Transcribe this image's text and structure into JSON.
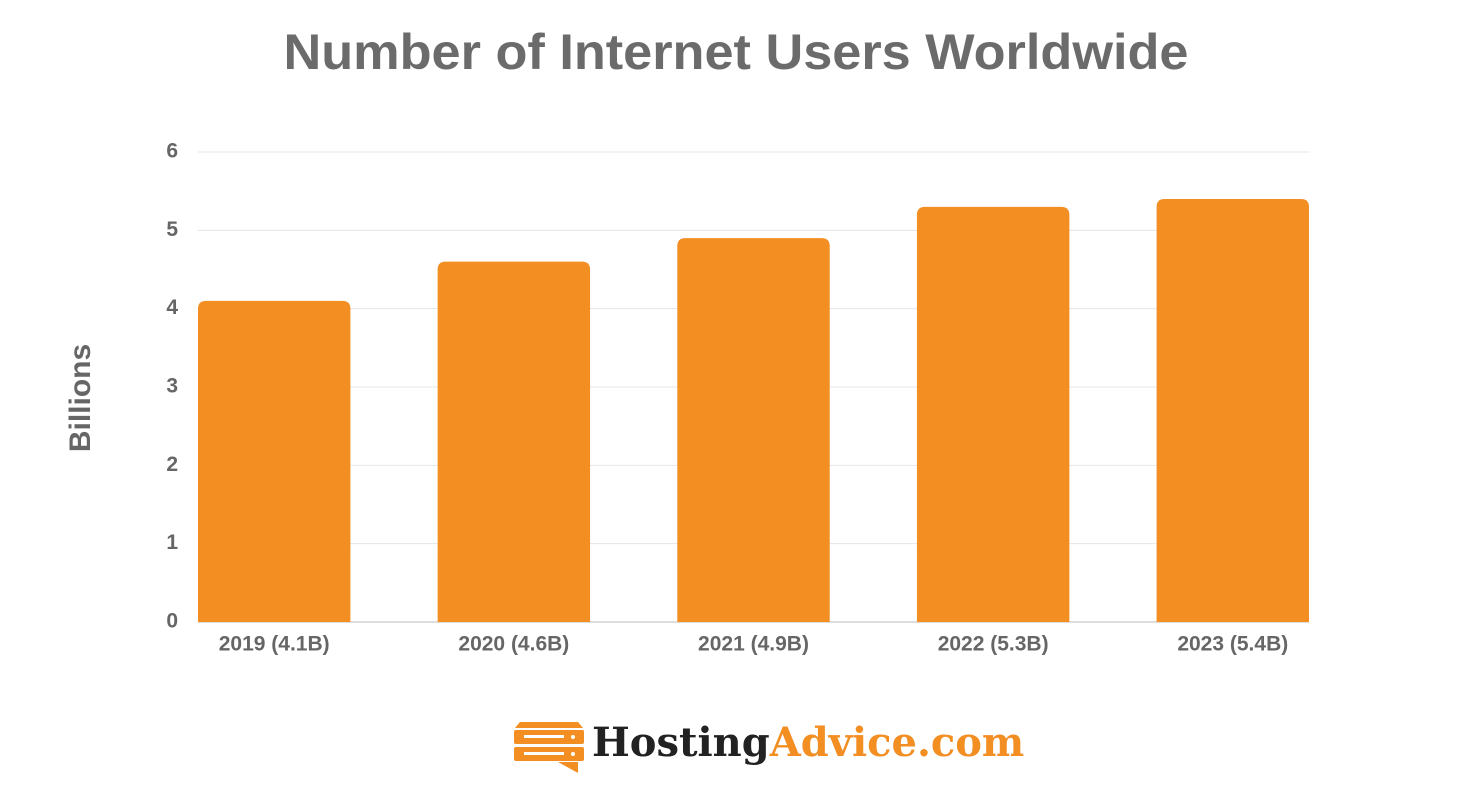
{
  "chart_data": {
    "type": "bar",
    "title": "Number of Internet Users Worldwide",
    "y_label": "Billions",
    "categories": [
      "2019 (4.1B)",
      "2020 (4.6B)",
      "2021 (4.9B)",
      "2022 (5.3B)",
      "2023 (5.4B)"
    ],
    "values": [
      4.1,
      4.6,
      4.9,
      5.3,
      5.4
    ],
    "color": "#f28e22",
    "ylim": [
      0,
      6
    ],
    "yticks": [
      0,
      1,
      2,
      3,
      4,
      5,
      6
    ],
    "grid": true
  },
  "logo": {
    "parts": [
      "Hosting",
      "Advice.com"
    ]
  }
}
